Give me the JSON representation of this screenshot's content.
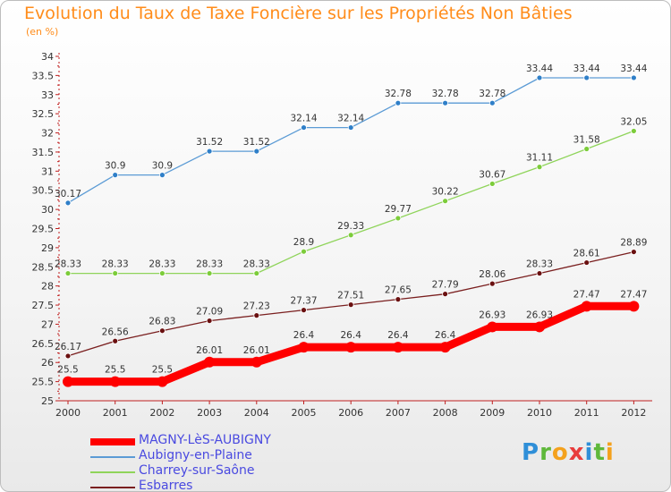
{
  "title": "Evolution du Taux de Taxe Foncière sur les Propriétés Non Bâties",
  "unit_label": "(en %)",
  "logo": "Proxiti",
  "chart_data": {
    "type": "line",
    "x": [
      "2000",
      "2001",
      "2002",
      "2003",
      "2004",
      "2005",
      "2006",
      "2007",
      "2008",
      "2009",
      "2010",
      "2011",
      "2012"
    ],
    "ylim": [
      25,
      34
    ],
    "yticks": [
      "25",
      "25.5",
      "26",
      "26.5",
      "27",
      "27.5",
      "28",
      "28.5",
      "29",
      "29.5",
      "30",
      "30.5",
      "31",
      "31.5",
      "32",
      "32.5",
      "33",
      "33.5",
      "34"
    ],
    "grid": false,
    "legend_position": "bottom-left",
    "series": [
      {
        "name": "MAGNY-LèS-AUBIGNY",
        "color": "#ff0000",
        "values": [
          25.5,
          25.5,
          25.5,
          26.01,
          26.01,
          26.4,
          26.4,
          26.4,
          26.4,
          26.93,
          26.93,
          27.47,
          27.47
        ],
        "labels": [
          "25.5",
          "25.5",
          "25.5",
          "26.01",
          "26.01",
          "26.4",
          "26.4",
          "26.4",
          "26.4",
          "26.93",
          "26.93",
          "27.47",
          "27.47"
        ]
      },
      {
        "name": "Aubigny-en-Plaine",
        "color": "#5b9bd5",
        "values": [
          30.17,
          30.9,
          30.9,
          31.52,
          31.52,
          32.14,
          32.14,
          32.78,
          32.78,
          32.78,
          33.44,
          33.44,
          33.44
        ],
        "labels": [
          "30.17",
          "30.9",
          "30.9",
          "31.52",
          "31.52",
          "32.14",
          "32.14",
          "32.78",
          "32.78",
          "32.78",
          "33.44",
          "33.44",
          "33.44"
        ]
      },
      {
        "name": "Charrey-sur-Saône",
        "color": "#8fd45a",
        "values": [
          28.33,
          28.33,
          28.33,
          28.33,
          28.33,
          28.9,
          29.33,
          29.77,
          30.22,
          30.67,
          31.11,
          31.58,
          32.05
        ],
        "labels": [
          "28.33",
          "28.33",
          "28.33",
          "28.33",
          "28.33",
          "28.9",
          "29.33",
          "29.77",
          "30.22",
          "30.67",
          "31.11",
          "31.58",
          "32.05"
        ]
      },
      {
        "name": "Esbarres",
        "color": "#7a1f1f",
        "values": [
          26.17,
          26.56,
          26.83,
          27.09,
          27.23,
          27.37,
          27.51,
          27.65,
          27.79,
          28.06,
          28.33,
          28.61,
          28.89
        ],
        "labels": [
          "26.17",
          "26.56",
          "26.83",
          "27.09",
          "27.23",
          "27.37",
          "27.51",
          "27.65",
          "27.79",
          "28.06",
          "28.33",
          "28.61",
          "28.89"
        ]
      }
    ]
  }
}
